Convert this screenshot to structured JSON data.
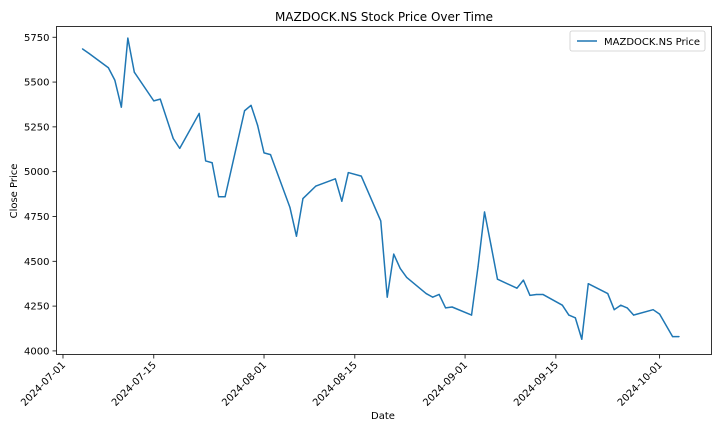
{
  "chart_data": {
    "type": "line",
    "title": "MAZDOCK.NS Stock Price Over Time",
    "xlabel": "Date",
    "ylabel": "Close Price",
    "xlim": [
      "2024-06-30",
      "2024-10-09"
    ],
    "ylim": [
      3980,
      5810
    ],
    "grid": false,
    "legend_position": "top-right",
    "x_ticks": [
      "2024-07-01",
      "2024-07-15",
      "2024-08-01",
      "2024-08-15",
      "2024-09-01",
      "2024-09-15",
      "2024-10-01"
    ],
    "y_ticks": [
      4000,
      4250,
      4500,
      4750,
      5000,
      5250,
      5500,
      5750
    ],
    "series": [
      {
        "name": "MAZDOCK.NS Price",
        "color": "#1f77b4",
        "x": [
          "2024-07-04",
          "2024-07-05",
          "2024-07-08",
          "2024-07-09",
          "2024-07-10",
          "2024-07-11",
          "2024-07-12",
          "2024-07-15",
          "2024-07-16",
          "2024-07-18",
          "2024-07-19",
          "2024-07-22",
          "2024-07-23",
          "2024-07-24",
          "2024-07-25",
          "2024-07-26",
          "2024-07-29",
          "2024-07-30",
          "2024-07-31",
          "2024-08-01",
          "2024-08-02",
          "2024-08-05",
          "2024-08-06",
          "2024-08-07",
          "2024-08-08",
          "2024-08-09",
          "2024-08-12",
          "2024-08-13",
          "2024-08-14",
          "2024-08-16",
          "2024-08-19",
          "2024-08-20",
          "2024-08-21",
          "2024-08-22",
          "2024-08-23",
          "2024-08-26",
          "2024-08-27",
          "2024-08-28",
          "2024-08-29",
          "2024-08-30",
          "2024-09-02",
          "2024-09-03",
          "2024-09-04",
          "2024-09-05",
          "2024-09-06",
          "2024-09-09",
          "2024-09-10",
          "2024-09-11",
          "2024-09-12",
          "2024-09-13",
          "2024-09-16",
          "2024-09-17",
          "2024-09-18",
          "2024-09-19",
          "2024-09-20",
          "2024-09-23",
          "2024-09-24",
          "2024-09-25",
          "2024-09-26",
          "2024-09-27",
          "2024-09-30",
          "2024-10-01",
          "2024-10-03",
          "2024-10-04"
        ],
        "values": [
          5685,
          5660,
          5580,
          5510,
          5360,
          5745,
          5555,
          5395,
          5405,
          5185,
          5130,
          5325,
          5060,
          5050,
          4860,
          4860,
          5340,
          5370,
          5260,
          5105,
          5095,
          4800,
          4640,
          4850,
          4885,
          4920,
          4960,
          4835,
          4995,
          4975,
          4725,
          4300,
          4540,
          4460,
          4410,
          4320,
          4300,
          4315,
          4240,
          4245,
          4200,
          4470,
          4775,
          4590,
          4400,
          4350,
          4395,
          4310,
          4315,
          4315,
          4255,
          4200,
          4185,
          4065,
          4375,
          4320,
          4230,
          4255,
          4240,
          4200,
          4230,
          4205,
          4080,
          4080
        ]
      }
    ]
  }
}
